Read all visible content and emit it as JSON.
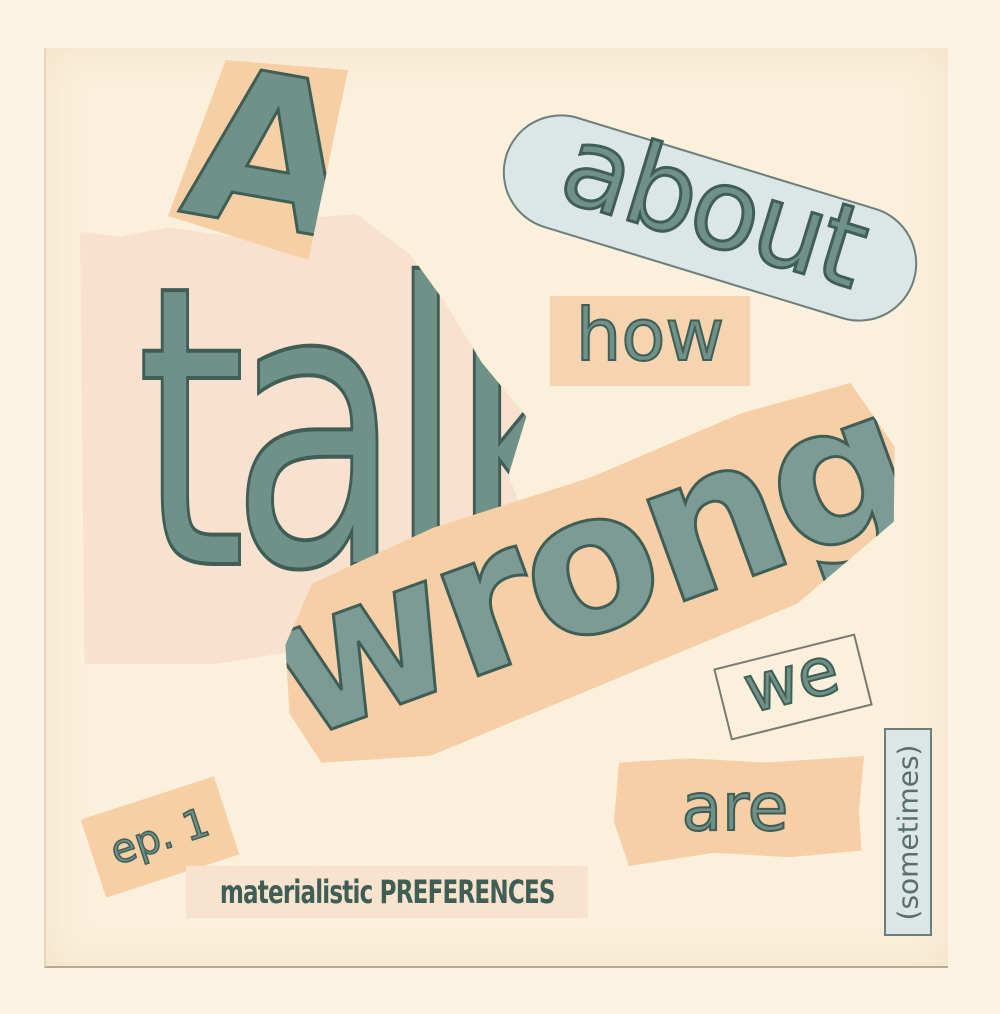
{
  "title_words": {
    "a": "A",
    "talk": "talk",
    "about": "about",
    "how": "how",
    "wrong": "wrong",
    "we": "we",
    "are": "are",
    "sometimes": "(sometimes)"
  },
  "episode": "ep. 1",
  "subtitle": "materialistic PREFERENCES",
  "colors": {
    "background": "#fdf3e2",
    "peach": "#f7cfa4",
    "letter_fill": "#6f9188",
    "letter_stroke": "#3f5e56",
    "pale_blue": "#dde6e7"
  }
}
